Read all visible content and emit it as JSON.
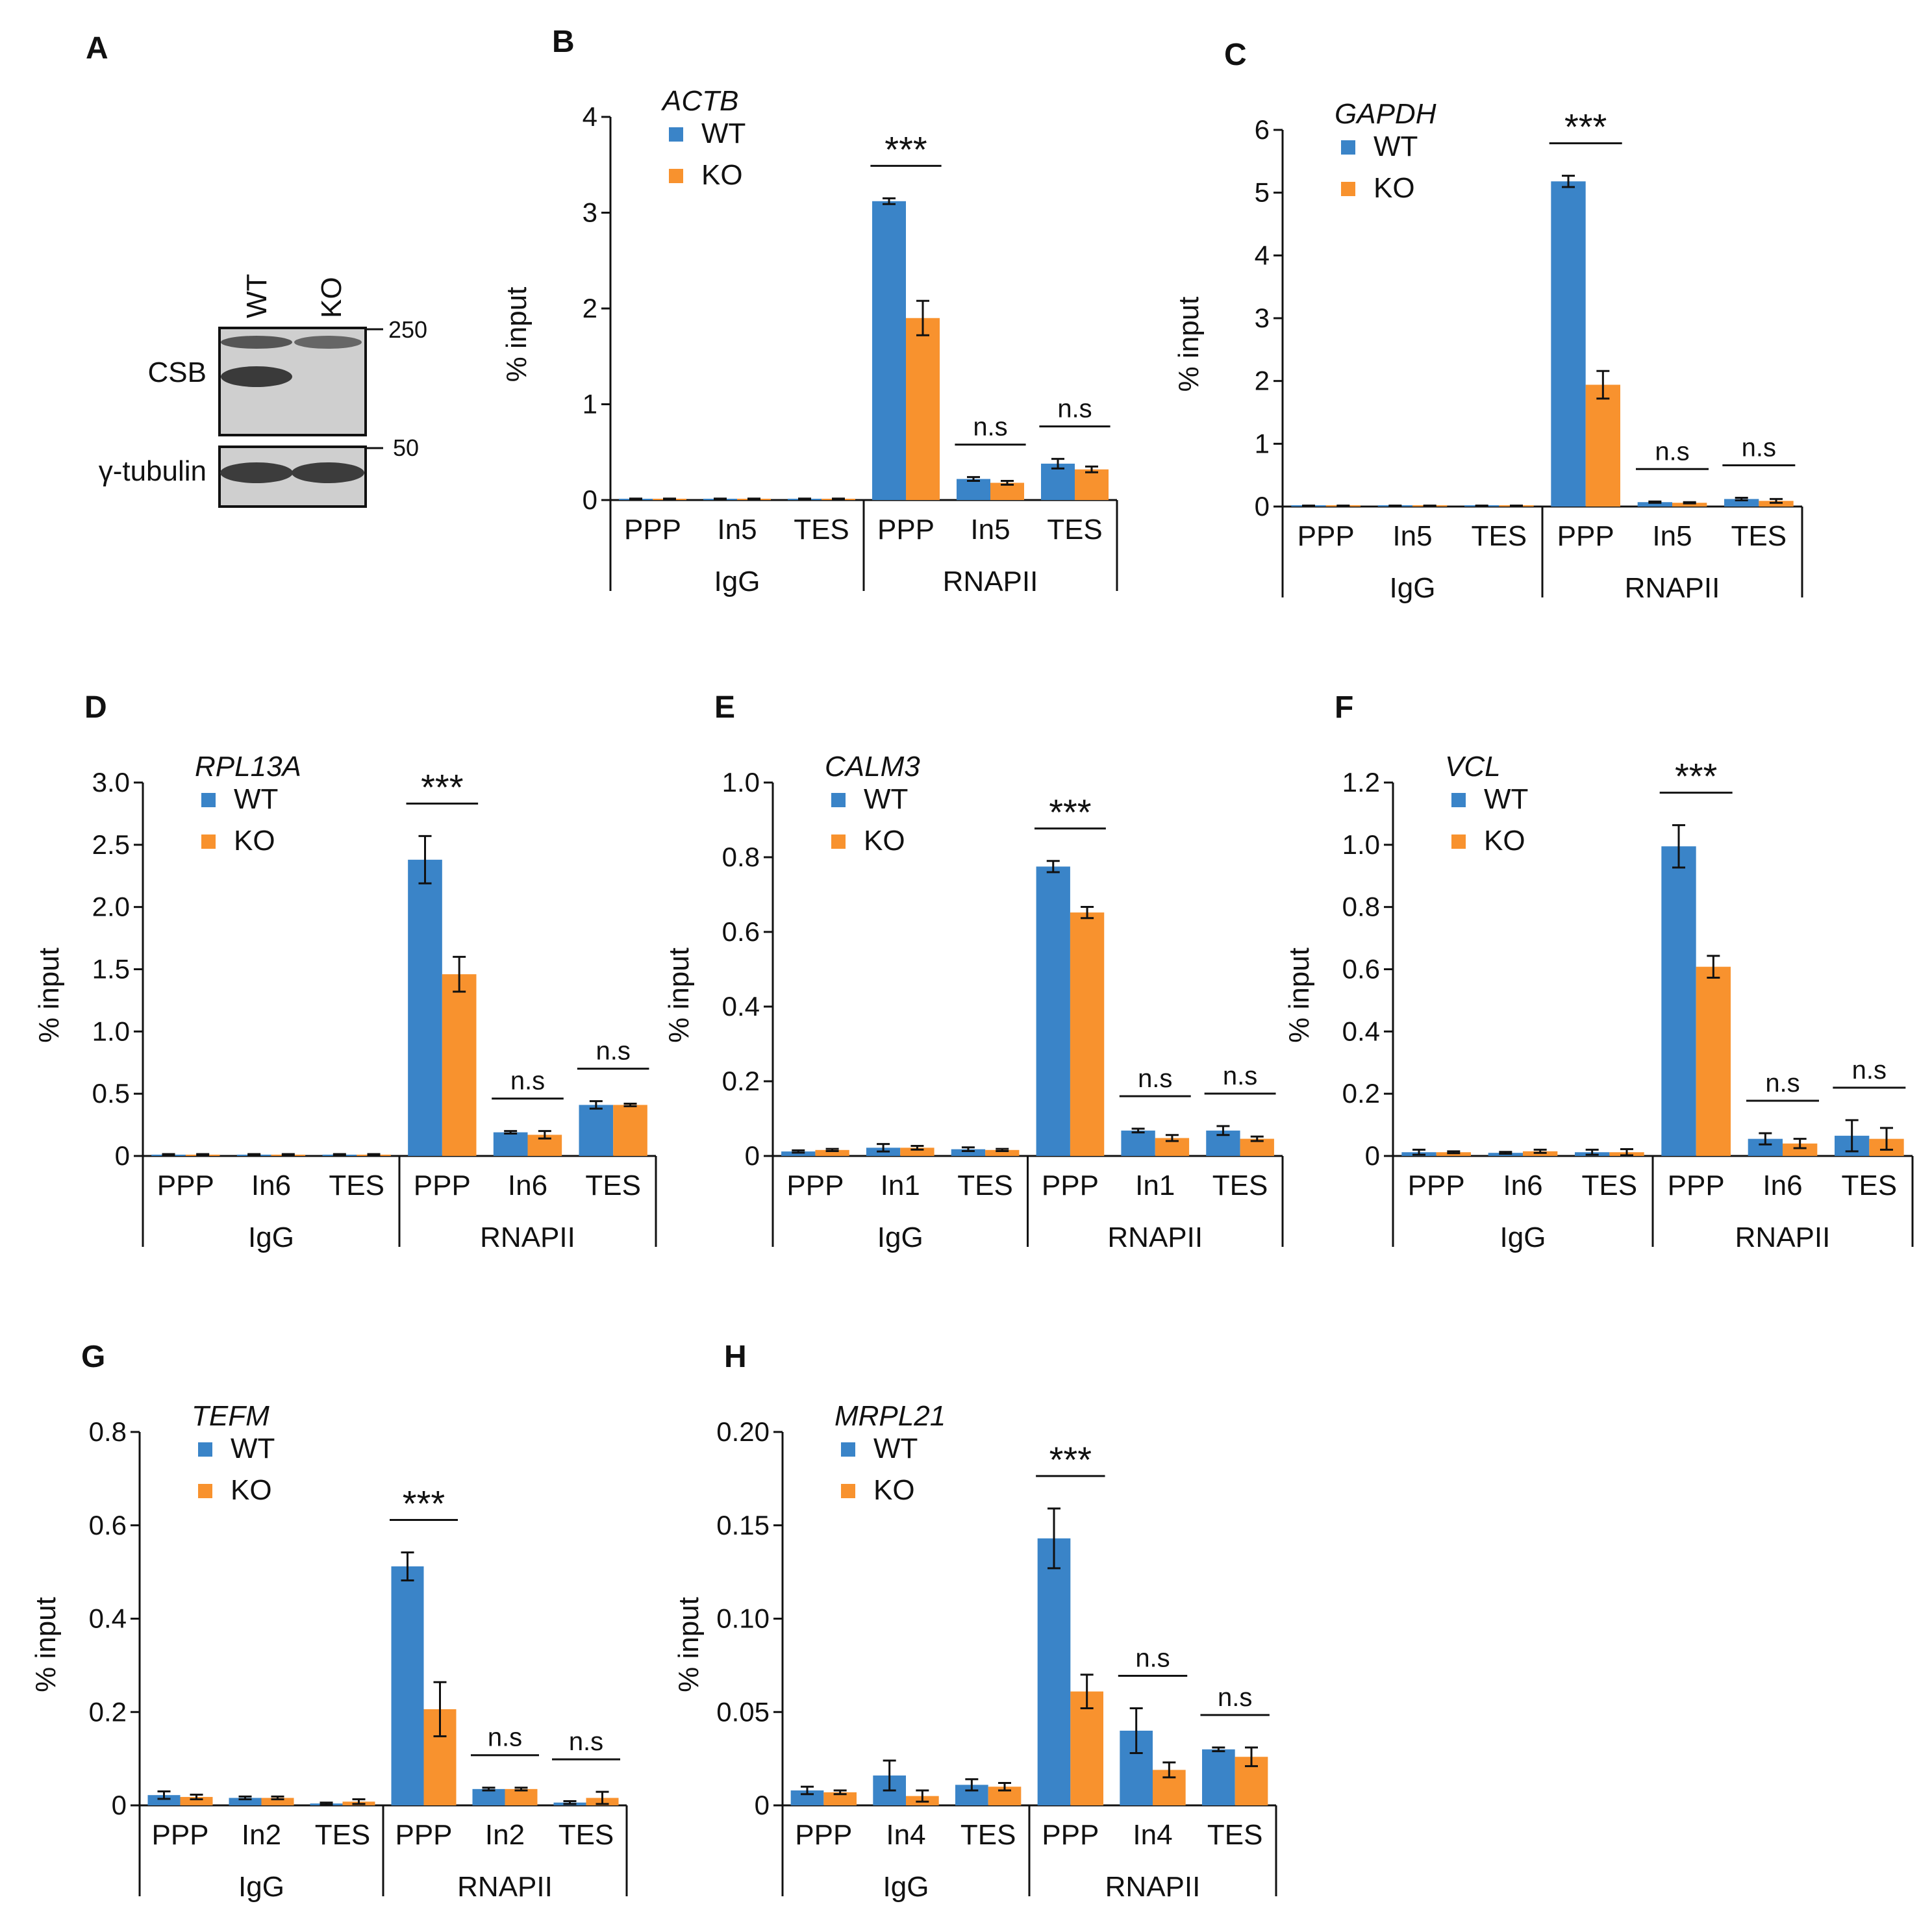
{
  "colors": {
    "wt": "#3a84c8",
    "ko": "#f8922e",
    "axis": "#111111"
  },
  "blot": {
    "label": "A",
    "lanes": [
      "WT",
      "KO"
    ],
    "rows": [
      {
        "name": "CSB",
        "marker": "250"
      },
      {
        "name": "γ-tubulin",
        "marker": "50"
      }
    ]
  },
  "chart_data": [
    {
      "panel": "B",
      "type": "bar",
      "title": "ACTB",
      "ylabel": "% input",
      "ylim": [
        0,
        4
      ],
      "yticks": [
        "0",
        "1",
        "2",
        "3",
        "4"
      ],
      "ytick_values": [
        0,
        1,
        2,
        3,
        4
      ],
      "categories": [
        "PPP",
        "In5",
        "TES",
        "PPP",
        "In5",
        "TES"
      ],
      "groups": [
        "IgG",
        "RNAPII"
      ],
      "series": [
        {
          "name": "WT",
          "values": [
            0.01,
            0.01,
            0.01,
            3.12,
            0.22,
            0.38
          ],
          "errors": [
            0.005,
            0.005,
            0.005,
            0.03,
            0.02,
            0.05
          ]
        },
        {
          "name": "KO",
          "values": [
            0.01,
            0.01,
            0.01,
            1.9,
            0.18,
            0.32
          ],
          "errors": [
            0.005,
            0.005,
            0.005,
            0.18,
            0.02,
            0.03
          ]
        }
      ],
      "annotations": [
        {
          "cat": 3,
          "text": "***"
        },
        {
          "cat": 4,
          "text": "n.s"
        },
        {
          "cat": 5,
          "text": "n.s"
        }
      ]
    },
    {
      "panel": "C",
      "type": "bar",
      "title": "GAPDH",
      "ylabel": "% input",
      "ylim": [
        0,
        6
      ],
      "yticks": [
        "0",
        "1",
        "2",
        "3",
        "4",
        "5",
        "6"
      ],
      "ytick_values": [
        0,
        1,
        2,
        3,
        4,
        5,
        6
      ],
      "categories": [
        "PPP",
        "In5",
        "TES",
        "PPP",
        "In5",
        "TES"
      ],
      "groups": [
        "IgG",
        "RNAPII"
      ],
      "series": [
        {
          "name": "WT",
          "values": [
            0.01,
            0.01,
            0.01,
            5.18,
            0.07,
            0.12
          ],
          "errors": [
            0.005,
            0.005,
            0.005,
            0.09,
            0.01,
            0.02
          ]
        },
        {
          "name": "KO",
          "values": [
            0.01,
            0.01,
            0.01,
            1.94,
            0.06,
            0.09
          ],
          "errors": [
            0.005,
            0.005,
            0.005,
            0.22,
            0.01,
            0.03
          ]
        }
      ],
      "annotations": [
        {
          "cat": 3,
          "text": "***"
        },
        {
          "cat": 4,
          "text": "n.s"
        },
        {
          "cat": 5,
          "text": "n.s"
        }
      ]
    },
    {
      "panel": "D",
      "type": "bar",
      "title": "RPL13A",
      "ylabel": "% input",
      "ylim": [
        0,
        3.0
      ],
      "yticks": [
        "0",
        "0.5",
        "1.0",
        "1.5",
        "2.0",
        "2.5",
        "3.0"
      ],
      "ytick_values": [
        0,
        0.5,
        1.0,
        1.5,
        2.0,
        2.5,
        3.0
      ],
      "categories": [
        "PPP",
        "In6",
        "TES",
        "PPP",
        "In6",
        "TES"
      ],
      "groups": [
        "IgG",
        "RNAPII"
      ],
      "series": [
        {
          "name": "WT",
          "values": [
            0.01,
            0.01,
            0.01,
            2.38,
            0.19,
            0.41
          ],
          "errors": [
            0.005,
            0.005,
            0.005,
            0.19,
            0.01,
            0.03
          ]
        },
        {
          "name": "KO",
          "values": [
            0.01,
            0.01,
            0.01,
            1.46,
            0.17,
            0.41
          ],
          "errors": [
            0.005,
            0.005,
            0.005,
            0.14,
            0.03,
            0.01
          ]
        }
      ],
      "annotations": [
        {
          "cat": 3,
          "text": "***"
        },
        {
          "cat": 4,
          "text": "n.s"
        },
        {
          "cat": 5,
          "text": "n.s"
        }
      ]
    },
    {
      "panel": "E",
      "type": "bar",
      "title": "CALM3",
      "ylabel": "% input",
      "ylim": [
        0,
        1.0
      ],
      "yticks": [
        "0",
        "0.2",
        "0.4",
        "0.6",
        "0.8",
        "1.0"
      ],
      "ytick_values": [
        0,
        0.2,
        0.4,
        0.6,
        0.8,
        1.0
      ],
      "categories": [
        "PPP",
        "In1",
        "TES",
        "PPP",
        "In1",
        "TES"
      ],
      "groups": [
        "IgG",
        "RNAPII"
      ],
      "series": [
        {
          "name": "WT",
          "values": [
            0.012,
            0.022,
            0.018,
            0.775,
            0.068,
            0.068
          ],
          "errors": [
            0.003,
            0.01,
            0.005,
            0.015,
            0.005,
            0.012
          ]
        },
        {
          "name": "KO",
          "values": [
            0.016,
            0.022,
            0.016,
            0.652,
            0.048,
            0.046
          ],
          "errors": [
            0.003,
            0.005,
            0.003,
            0.015,
            0.008,
            0.006
          ]
        }
      ],
      "annotations": [
        {
          "cat": 3,
          "text": "***"
        },
        {
          "cat": 4,
          "text": "n.s"
        },
        {
          "cat": 5,
          "text": "n.s"
        }
      ]
    },
    {
      "panel": "F",
      "type": "bar",
      "title": "VCL",
      "ylabel": "% input",
      "ylim": [
        0,
        1.2
      ],
      "yticks": [
        "0",
        "0.2",
        "0.4",
        "0.6",
        "0.8",
        "1.0",
        "1.2"
      ],
      "ytick_values": [
        0,
        0.2,
        0.4,
        0.6,
        0.8,
        1.0,
        1.2
      ],
      "categories": [
        "PPP",
        "In6",
        "TES",
        "PPP",
        "In6",
        "TES"
      ],
      "groups": [
        "IgG",
        "RNAPII"
      ],
      "series": [
        {
          "name": "WT",
          "values": [
            0.012,
            0.01,
            0.012,
            0.995,
            0.055,
            0.065
          ],
          "errors": [
            0.008,
            0.003,
            0.008,
            0.068,
            0.018,
            0.05
          ]
        },
        {
          "name": "KO",
          "values": [
            0.012,
            0.015,
            0.012,
            0.608,
            0.04,
            0.055
          ],
          "errors": [
            0.003,
            0.005,
            0.01,
            0.035,
            0.015,
            0.035
          ]
        }
      ],
      "annotations": [
        {
          "cat": 3,
          "text": "***"
        },
        {
          "cat": 4,
          "text": "n.s"
        },
        {
          "cat": 5,
          "text": "n.s"
        }
      ]
    },
    {
      "panel": "G",
      "type": "bar",
      "title": "TEFM",
      "ylabel": "% input",
      "ylim": [
        0,
        0.8
      ],
      "yticks": [
        "0",
        "0.2",
        "0.4",
        "0.6",
        "0.8"
      ],
      "ytick_values": [
        0,
        0.2,
        0.4,
        0.6,
        0.8
      ],
      "categories": [
        "PPP",
        "In2",
        "TES",
        "PPP",
        "In2",
        "TES"
      ],
      "groups": [
        "IgG",
        "RNAPII"
      ],
      "series": [
        {
          "name": "WT",
          "values": [
            0.022,
            0.016,
            0.004,
            0.512,
            0.035,
            0.006
          ],
          "errors": [
            0.008,
            0.003,
            0.002,
            0.03,
            0.003,
            0.003
          ]
        },
        {
          "name": "KO",
          "values": [
            0.018,
            0.016,
            0.008,
            0.206,
            0.035,
            0.016
          ],
          "errors": [
            0.005,
            0.003,
            0.005,
            0.058,
            0.003,
            0.013
          ]
        }
      ],
      "annotations": [
        {
          "cat": 3,
          "text": "***"
        },
        {
          "cat": 4,
          "text": "n.s"
        },
        {
          "cat": 5,
          "text": "n.s"
        }
      ]
    },
    {
      "panel": "H",
      "type": "bar",
      "title": "MRPL21",
      "ylabel": "% input",
      "ylim": [
        0,
        0.2
      ],
      "yticks": [
        "0",
        "0.05",
        "0.10",
        "0.15",
        "0.20"
      ],
      "ytick_values": [
        0,
        0.05,
        0.1,
        0.15,
        0.2
      ],
      "categories": [
        "PPP",
        "In4",
        "TES",
        "PPP",
        "In4",
        "TES"
      ],
      "groups": [
        "IgG",
        "RNAPII"
      ],
      "series": [
        {
          "name": "WT",
          "values": [
            0.008,
            0.016,
            0.011,
            0.143,
            0.04,
            0.03
          ],
          "errors": [
            0.002,
            0.008,
            0.003,
            0.016,
            0.012,
            0.001
          ]
        },
        {
          "name": "KO",
          "values": [
            0.007,
            0.005,
            0.01,
            0.061,
            0.019,
            0.026
          ],
          "errors": [
            0.001,
            0.003,
            0.002,
            0.009,
            0.004,
            0.005
          ]
        }
      ],
      "annotations": [
        {
          "cat": 3,
          "text": "***"
        },
        {
          "cat": 4,
          "text": "n.s"
        },
        {
          "cat": 5,
          "text": "n.s"
        }
      ]
    }
  ]
}
